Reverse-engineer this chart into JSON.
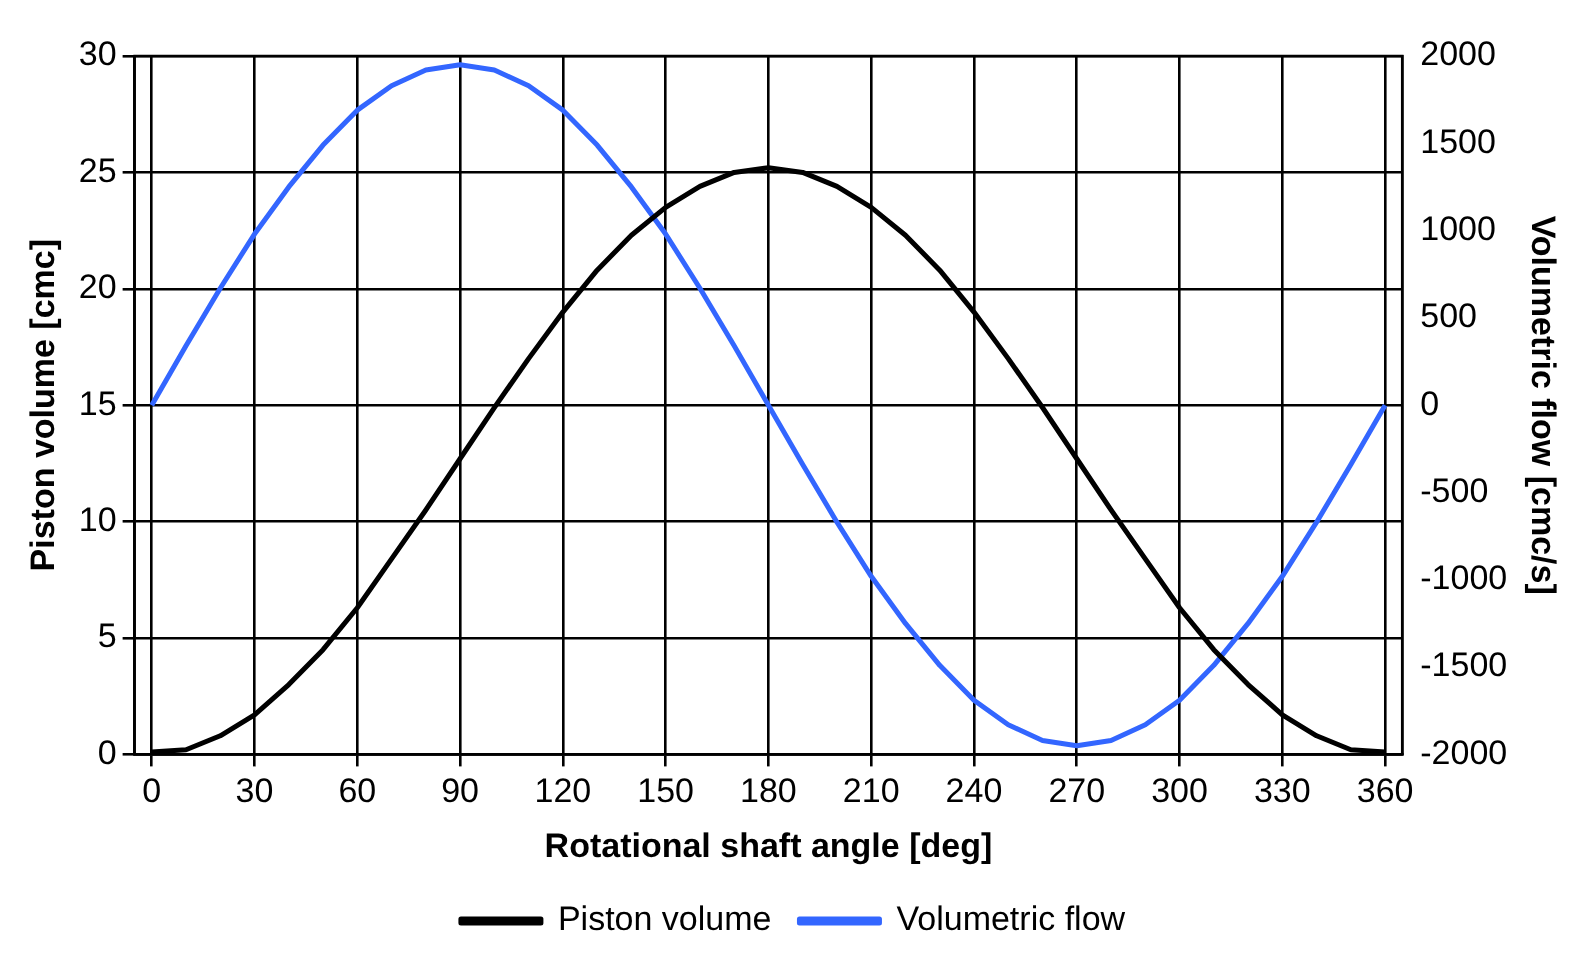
{
  "chart_data": {
    "type": "line",
    "xlabel": "Rotational shaft angle [deg]",
    "ylabel": "Piston volume [cmc]",
    "y2label": "Volumetric flow [cmc/s]",
    "x": [
      0,
      10,
      20,
      30,
      40,
      50,
      60,
      70,
      80,
      90,
      100,
      110,
      120,
      130,
      140,
      150,
      160,
      170,
      180,
      190,
      200,
      210,
      220,
      230,
      240,
      250,
      260,
      270,
      280,
      290,
      300,
      310,
      320,
      330,
      340,
      350,
      360
    ],
    "series": [
      {
        "name": "Piston volume",
        "color": "#000000",
        "values": [
          0.1,
          0.2,
          0.8,
          1.7,
          3.0,
          4.5,
          6.3,
          8.4,
          10.5,
          12.7,
          14.9,
          17.0,
          19.0,
          20.8,
          22.3,
          23.5,
          24.4,
          25.0,
          25.2,
          25.0,
          24.4,
          23.5,
          22.3,
          20.8,
          19.0,
          17.0,
          14.9,
          12.7,
          10.5,
          8.4,
          6.3,
          4.5,
          3.0,
          1.7,
          0.8,
          0.2,
          0.1
        ]
      },
      {
        "name": "Volumetric flow",
        "color": "#3366ff",
        "axis": "y2",
        "values": [
          0,
          340,
          670,
          980,
          1250,
          1490,
          1690,
          1830,
          1920,
          1950,
          1920,
          1830,
          1690,
          1490,
          1250,
          980,
          670,
          340,
          0,
          -340,
          -670,
          -980,
          -1250,
          -1490,
          -1690,
          -1830,
          -1920,
          -1950,
          -1920,
          -1830,
          -1690,
          -1490,
          -1250,
          -980,
          -670,
          -340,
          0
        ]
      }
    ],
    "xlim": [
      -5,
      365
    ],
    "xticks": [
      0,
      30,
      60,
      90,
      120,
      150,
      180,
      210,
      240,
      270,
      300,
      330,
      360
    ],
    "ylim": [
      0,
      30
    ],
    "yticks": [
      0,
      5,
      10,
      15,
      20,
      25,
      30
    ],
    "y2lim": [
      -2000,
      2000
    ],
    "y2ticks": [
      -2000,
      -1500,
      -1000,
      -500,
      0,
      500,
      1000,
      1500,
      2000
    ],
    "grid": true,
    "legend": "bottom",
    "marker": "none",
    "line_style": "solid"
  }
}
